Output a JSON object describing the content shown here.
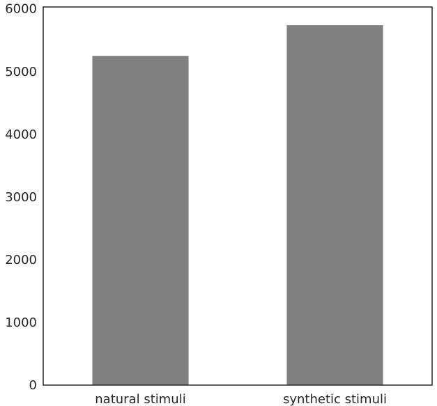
{
  "chart_data": {
    "type": "bar",
    "title": "",
    "xlabel": "",
    "ylabel": "",
    "categories": [
      "natural stimuli",
      "synthetic stimuli"
    ],
    "values": [
      5250,
      5740
    ],
    "ylim": [
      0,
      6030
    ],
    "yticks": [
      0,
      1000,
      2000,
      3000,
      4000,
      5000,
      6000
    ],
    "ytick_labels": [
      "0",
      "1000",
      "2000",
      "3000",
      "4000",
      "5000",
      "6000"
    ],
    "grid": false,
    "bar_color": "#808080",
    "axis_color": "#262626"
  }
}
